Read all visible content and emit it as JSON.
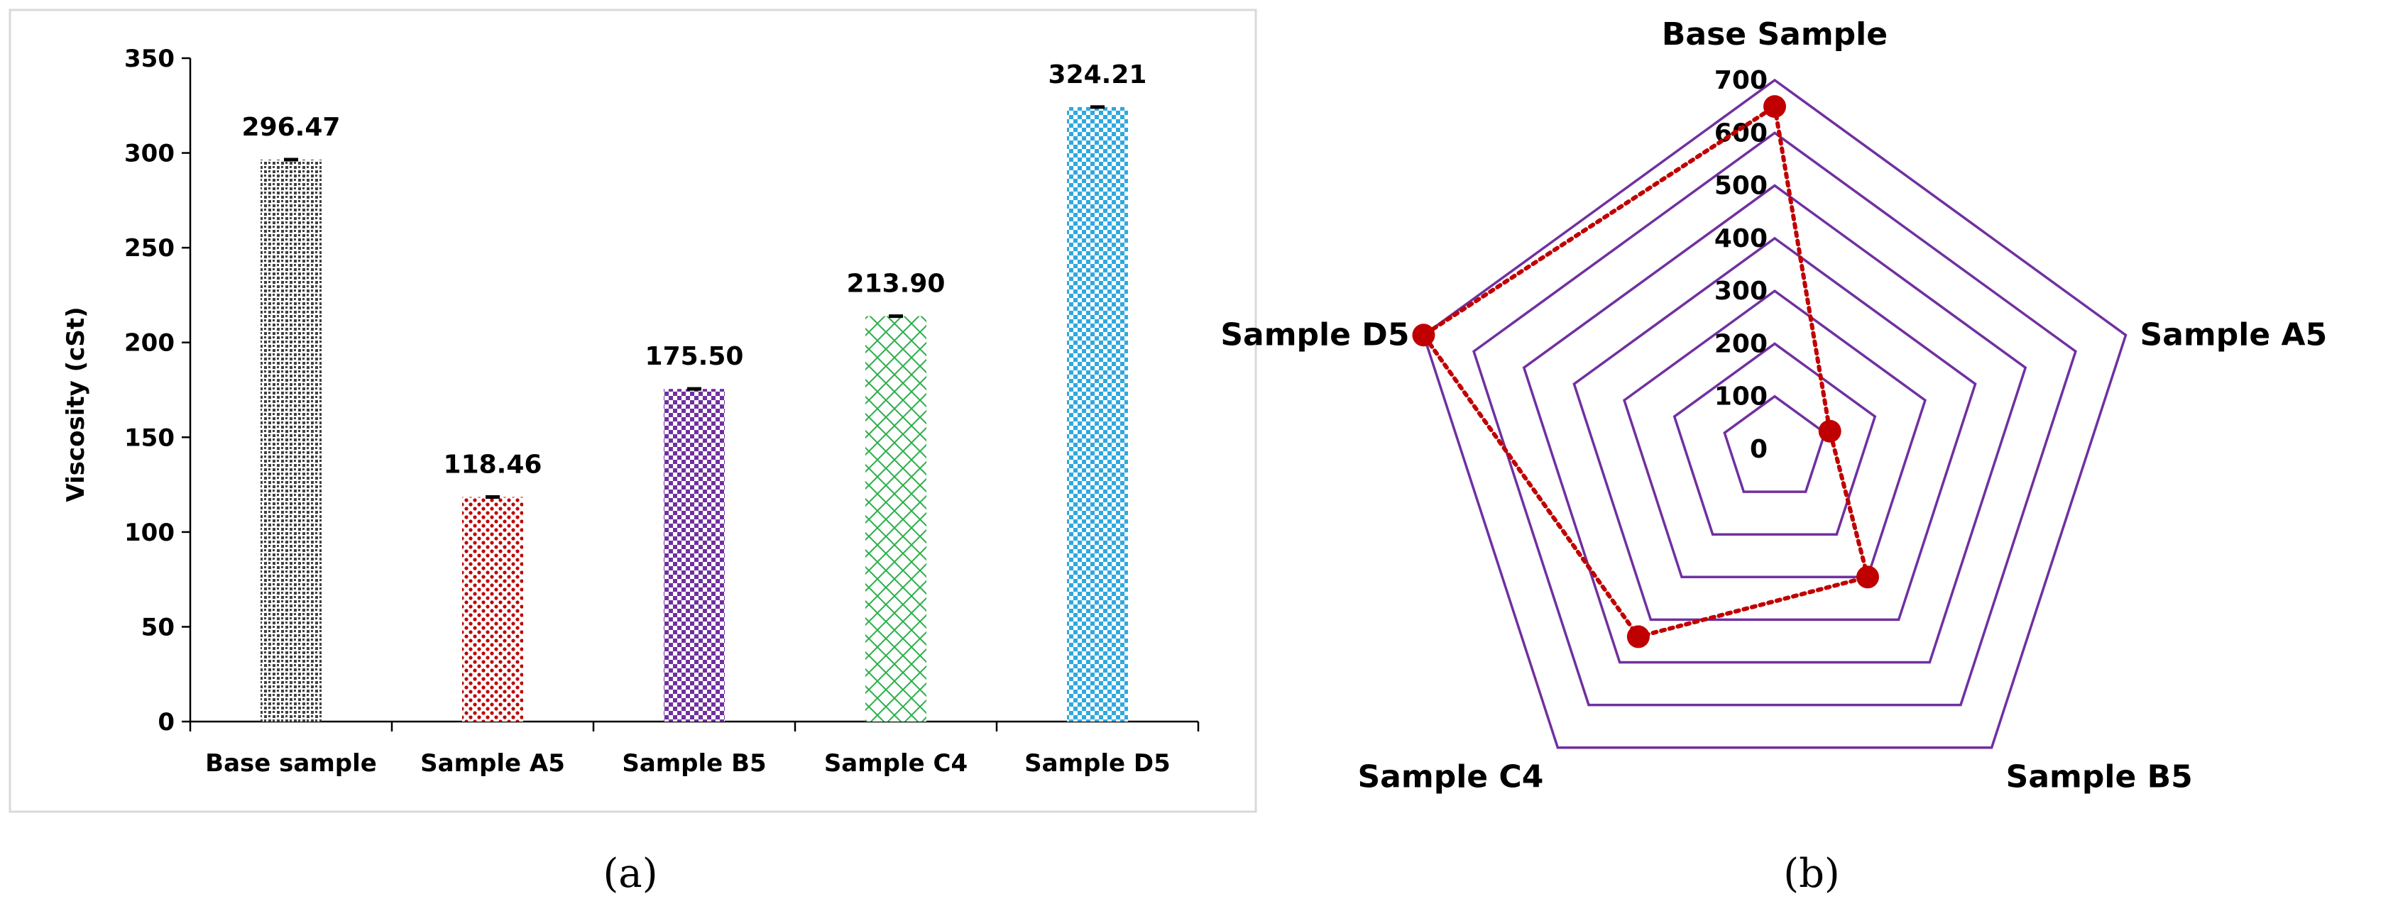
{
  "panels": [
    {
      "label": "(a)"
    },
    {
      "label": "(b)"
    }
  ],
  "chart_data": [
    {
      "type": "bar",
      "categories": [
        "Base sample",
        "Sample A5",
        "Sample B5",
        "Sample C4",
        "Sample D5"
      ],
      "values": [
        296.47,
        118.46,
        175.5,
        213.9,
        324.21
      ],
      "value_labels": [
        "296.47",
        "118.46",
        "175.50",
        "213.90",
        "324.21"
      ],
      "xlabel": "",
      "ylabel": "Viscosity (cSt)",
      "ylim": [
        0,
        350
      ],
      "yticks": [
        0,
        50,
        100,
        150,
        200,
        250,
        300,
        350
      ],
      "grid": false,
      "error_bars": true,
      "colors": [
        "#404040",
        "#c00000",
        "#7030a0",
        "#2db04b",
        "#2fa8e0"
      ]
    },
    {
      "type": "radar",
      "categories": [
        "Base Sample",
        "Sample A5",
        "Sample B5",
        "Sample C4",
        "Sample D5"
      ],
      "values": [
        650,
        110,
        300,
        440,
        700
      ],
      "rlim": [
        0,
        700
      ],
      "rticks": [
        0,
        100,
        200,
        300,
        400,
        500,
        600,
        700
      ],
      "grid_color": "#7030a0",
      "series_color": "#c00000",
      "line_style": "dotted"
    }
  ]
}
